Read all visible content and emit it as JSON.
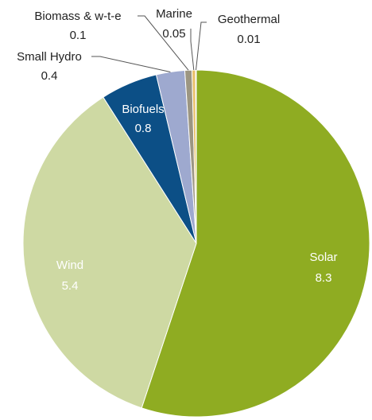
{
  "chart_data": {
    "type": "pie",
    "title": "",
    "slices": [
      {
        "name": "Solar",
        "value": 8.3,
        "value_label": "8.3",
        "color": "#8fac22"
      },
      {
        "name": "Wind",
        "value": 5.4,
        "value_label": "5.4",
        "color": "#ced9a3"
      },
      {
        "name": "Biofuels",
        "value": 0.8,
        "value_label": "0.8",
        "color": "#0c4f86"
      },
      {
        "name": "Small Hydro",
        "value": 0.4,
        "value_label": "0.4",
        "color": "#9ea9cf"
      },
      {
        "name": "Biomass & w-t-e",
        "value": 0.1,
        "value_label": "0.1",
        "color": "#9c9682"
      },
      {
        "name": "Marine",
        "value": 0.05,
        "value_label": "0.05",
        "color": "#e9c06a"
      },
      {
        "name": "Geothermal",
        "value": 0.01,
        "value_label": "0.01",
        "color": "#c98a3a"
      }
    ],
    "start_angle": "12 o'clock",
    "direction": "clockwise",
    "legend": "none"
  }
}
